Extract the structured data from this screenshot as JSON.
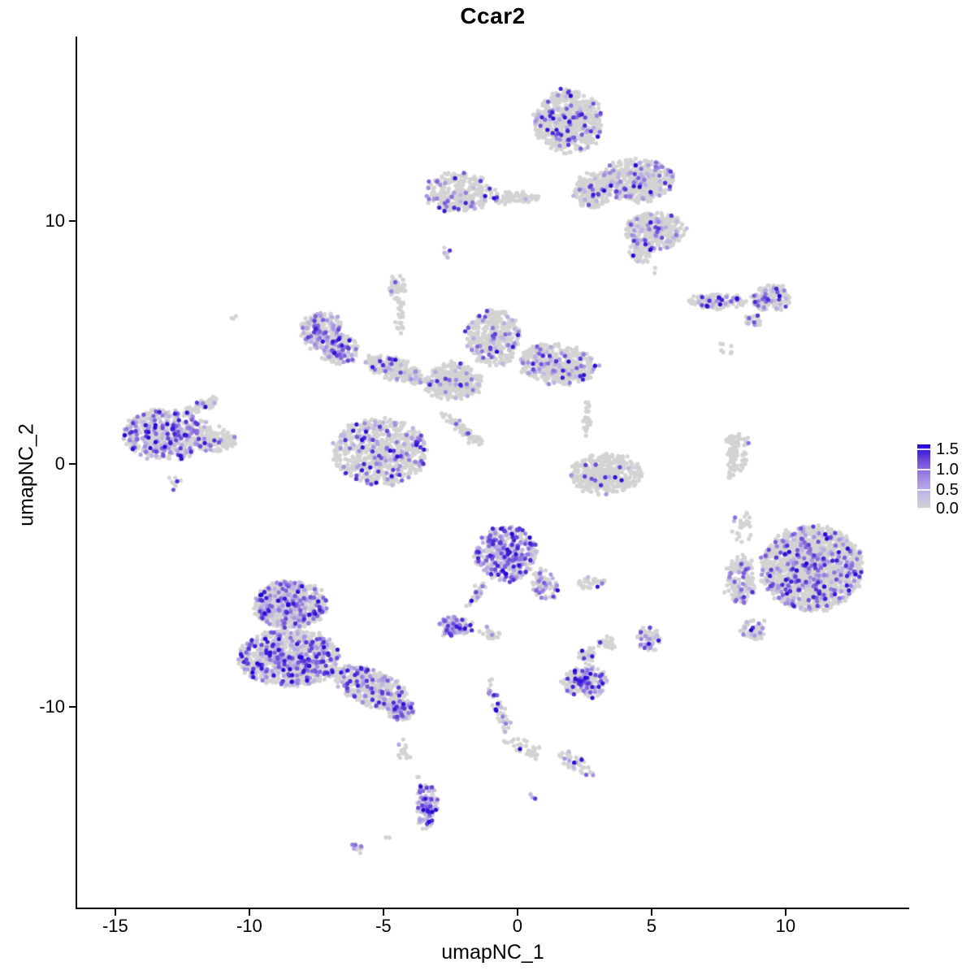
{
  "title": "Ccar2",
  "axes": {
    "x_label": "umapNC_1",
    "y_label": "umapNC_2"
  },
  "legend": {
    "labels": [
      "1.5",
      "1.0",
      "0.5",
      "0.0"
    ],
    "values": [
      1.5,
      1.0,
      0.5,
      0.0
    ]
  },
  "chart_data": {
    "type": "scatter",
    "subtype": "umap-feature-plot",
    "title": "Ccar2",
    "xlabel": "umapNC_1",
    "ylabel": "umapNC_2",
    "x_ticks": [
      -15,
      -10,
      -5,
      0,
      5,
      10
    ],
    "y_ticks": [
      -10,
      0,
      10
    ],
    "xlim": [
      -16.42,
      14.58
    ],
    "ylim": [
      -18.29,
      17.62
    ],
    "grid": false,
    "legend_position": "right",
    "point_radius_px": 2.6,
    "color_scale": {
      "vmin": 0.0,
      "vmax": 1.6,
      "low": "#d3d3d3",
      "high": "#2105d7",
      "stops": [
        [
          0,
          "#d3d3d3"
        ],
        [
          0.3,
          "#bcb1e3"
        ],
        [
          0.55,
          "#9379df"
        ],
        [
          0.8,
          "#5c38d8"
        ],
        [
          1,
          "#2105d7"
        ]
      ]
    },
    "clusters": [
      {
        "name": "top-main-lobe",
        "cx": 1.9,
        "cy": 14.1,
        "sx": 1.25,
        "sy": 1.3,
        "rot": 0,
        "n": 650,
        "expr_frac": 0.13
      },
      {
        "name": "top-right-mid",
        "cx": 4.5,
        "cy": 11.7,
        "sx": 1.35,
        "sy": 0.85,
        "rot": 0,
        "n": 520,
        "expr_frac": 0.13
      },
      {
        "name": "top-neck",
        "cx": 2.8,
        "cy": 11.3,
        "sx": 0.7,
        "sy": 0.75,
        "rot": 0,
        "n": 200,
        "expr_frac": 0.13
      },
      {
        "name": "top-bottomright-lobe",
        "cx": 5.1,
        "cy": 9.6,
        "sx": 1.15,
        "sy": 0.75,
        "rot": 0,
        "n": 330,
        "expr_frac": 0.16
      },
      {
        "name": "top-tail",
        "cx": 4.6,
        "cy": 8.8,
        "sx": 0.4,
        "sy": 0.55,
        "rot": 0,
        "n": 70,
        "expr_frac": 0.15
      },
      {
        "name": "top-left-bridge",
        "cx": -0.1,
        "cy": 11.0,
        "sx": 0.85,
        "sy": 0.22,
        "rot": 0,
        "n": 70,
        "expr_frac": 0.06
      },
      {
        "name": "top-left-satellite",
        "cx": -2.2,
        "cy": 11.2,
        "sx": 1.25,
        "sy": 0.8,
        "rot": 0,
        "n": 300,
        "expr_frac": 0.13
      },
      {
        "name": "tiny-pair",
        "cx": -2.7,
        "cy": 8.7,
        "sx": 0.28,
        "sy": 0.33,
        "rot": 0,
        "n": 6,
        "expr_frac": 0.25
      },
      {
        "name": "small-blob-upper",
        "cx": -4.5,
        "cy": 7.3,
        "sx": 0.3,
        "sy": 0.55,
        "rot": 0,
        "n": 45,
        "expr_frac": 0.1
      },
      {
        "name": "thin-strand-vert",
        "cx": -4.4,
        "cy": 6.1,
        "sx": 0.1,
        "sy": 0.7,
        "rot": 0,
        "n": 22,
        "expr_frac": 0
      },
      {
        "name": "x-head-a",
        "cx": -7.3,
        "cy": 5.5,
        "sx": 0.75,
        "sy": 0.75,
        "rot": 0,
        "n": 230,
        "expr_frac": 0.3
      },
      {
        "name": "x-head-b",
        "cx": -6.6,
        "cy": 4.7,
        "sx": 0.7,
        "sy": 0.6,
        "rot": 0,
        "n": 150,
        "expr_frac": 0.25
      },
      {
        "name": "x-arm-left",
        "cx": -4.6,
        "cy": 3.9,
        "sx": 1.15,
        "sy": 0.45,
        "rot": -20,
        "n": 240,
        "expr_frac": 0.12
      },
      {
        "name": "x-center",
        "cx": -2.4,
        "cy": 3.4,
        "sx": 1.05,
        "sy": 0.7,
        "rot": 0,
        "n": 360,
        "expr_frac": 0.1
      },
      {
        "name": "x-upper-right-lobe",
        "cx": -0.9,
        "cy": 5.2,
        "sx": 1.0,
        "sy": 1.15,
        "rot": 0,
        "n": 380,
        "expr_frac": 0.12
      },
      {
        "name": "x-right-arm",
        "cx": 1.5,
        "cy": 4.1,
        "sx": 1.45,
        "sy": 0.8,
        "rot": -8,
        "n": 460,
        "expr_frac": 0.15
      },
      {
        "name": "x-diag-strand",
        "cx": -2.0,
        "cy": 1.4,
        "sx": 1.05,
        "sy": 0.16,
        "rot": -42,
        "n": 70,
        "expr_frac": 0.08
      },
      {
        "name": "lower-mid-lobe",
        "cx": -5.1,
        "cy": 0.5,
        "sx": 1.75,
        "sy": 1.35,
        "rot": 0,
        "n": 700,
        "expr_frac": 0.18
      },
      {
        "name": "center-right-cluster",
        "cx": 3.3,
        "cy": -0.4,
        "sx": 1.35,
        "sy": 0.8,
        "rot": 0,
        "n": 390,
        "expr_frac": 0.04
      },
      {
        "name": "center-right-strand",
        "cx": 2.6,
        "cy": 1.9,
        "sx": 0.13,
        "sy": 0.85,
        "rot": 0,
        "n": 28,
        "expr_frac": 0.03
      },
      {
        "name": "right-strip-top",
        "cx": 8.2,
        "cy": 1.0,
        "sx": 0.5,
        "sy": 0.28,
        "rot": 0,
        "n": 35,
        "expr_frac": 0.15
      },
      {
        "name": "right-strip-vert",
        "cx": 8.0,
        "cy": 0.0,
        "sx": 0.16,
        "sy": 0.75,
        "rot": -6,
        "n": 45,
        "expr_frac": 0
      },
      {
        "name": "right-strip-vert2",
        "cx": 8.4,
        "cy": 0.1,
        "sx": 0.1,
        "sy": 0.38,
        "rot": 0,
        "n": 14,
        "expr_frac": 0
      },
      {
        "name": "right-lens-left",
        "cx": 7.4,
        "cy": 6.7,
        "sx": 1.05,
        "sy": 0.3,
        "rot": 0,
        "n": 110,
        "expr_frac": 0.18
      },
      {
        "name": "right-lens-right",
        "cx": 9.5,
        "cy": 6.8,
        "sx": 0.75,
        "sy": 0.55,
        "rot": 0,
        "n": 140,
        "expr_frac": 0.22
      },
      {
        "name": "right-lens-tail",
        "cx": 8.8,
        "cy": 5.9,
        "sx": 0.3,
        "sy": 0.28,
        "rot": 0,
        "n": 25,
        "expr_frac": 0.12
      },
      {
        "name": "tiny-triplet",
        "cx": 7.8,
        "cy": 4.7,
        "sx": 0.3,
        "sy": 0.3,
        "rot": 0,
        "n": 7,
        "expr_frac": 0
      },
      {
        "name": "big-right-main",
        "cx": 11.0,
        "cy": -4.3,
        "sx": 1.9,
        "sy": 1.75,
        "rot": 0,
        "n": 1500,
        "expr_frac": 0.2
      },
      {
        "name": "big-right-left-lobe",
        "cx": 8.3,
        "cy": -4.8,
        "sx": 0.55,
        "sy": 1.0,
        "rot": 0,
        "n": 160,
        "expr_frac": 0.18
      },
      {
        "name": "big-right-strays",
        "cx": 8.4,
        "cy": -2.6,
        "sx": 0.4,
        "sy": 0.75,
        "rot": 0,
        "n": 25,
        "expr_frac": 0.04
      },
      {
        "name": "big-right-bottom-tip",
        "cx": 8.8,
        "cy": -6.8,
        "sx": 0.45,
        "sy": 0.45,
        "rot": 0,
        "n": 60,
        "expr_frac": 0.2
      },
      {
        "name": "center-dense",
        "cx": -0.4,
        "cy": -3.7,
        "sx": 1.15,
        "sy": 1.1,
        "rot": 0,
        "n": 430,
        "expr_frac": 0.42
      },
      {
        "name": "center-dense-hook",
        "cx": 1.0,
        "cy": -5.0,
        "sx": 0.45,
        "sy": 0.65,
        "rot": 20,
        "n": 80,
        "expr_frac": 0.35
      },
      {
        "name": "center-tail",
        "cx": -1.5,
        "cy": -5.4,
        "sx": 0.14,
        "sy": 0.8,
        "rot": -27,
        "n": 30,
        "expr_frac": 0.5
      },
      {
        "name": "small-dense-blob",
        "cx": -2.3,
        "cy": -6.7,
        "sx": 0.68,
        "sy": 0.38,
        "rot": 0,
        "n": 95,
        "expr_frac": 0.55
      },
      {
        "name": "mid-grey-bits",
        "cx": 2.8,
        "cy": -4.9,
        "sx": 0.55,
        "sy": 0.25,
        "rot": 0,
        "n": 28,
        "expr_frac": 0.1
      },
      {
        "name": "mid-grey-bits2",
        "cx": -1.0,
        "cy": -7.0,
        "sx": 0.4,
        "sy": 0.22,
        "rot": 0,
        "n": 20,
        "expr_frac": 0.1
      },
      {
        "name": "bottomleft-top",
        "cx": -8.5,
        "cy": -5.8,
        "sx": 1.35,
        "sy": 0.95,
        "rot": 0,
        "n": 700,
        "expr_frac": 0.28
      },
      {
        "name": "bottomleft-main",
        "cx": -8.5,
        "cy": -8.0,
        "sx": 1.9,
        "sy": 1.15,
        "rot": 0,
        "n": 1000,
        "expr_frac": 0.28
      },
      {
        "name": "bottomleft-arm",
        "cx": -5.5,
        "cy": -9.2,
        "sx": 1.5,
        "sy": 0.7,
        "rot": -25,
        "n": 450,
        "expr_frac": 0.22
      },
      {
        "name": "bottomleft-arm-tip",
        "cx": -4.3,
        "cy": -10.2,
        "sx": 0.5,
        "sy": 0.42,
        "rot": 0,
        "n": 120,
        "expr_frac": 0.35
      },
      {
        "name": "bottomleft-chain",
        "cx": -4.2,
        "cy": -11.8,
        "sx": 0.22,
        "sy": 0.5,
        "rot": 0,
        "n": 16,
        "expr_frac": 0.1
      },
      {
        "name": "bottom-banana",
        "cx": -3.4,
        "cy": -14.1,
        "sx": 0.38,
        "sy": 0.95,
        "rot": 0,
        "n": 110,
        "expr_frac": 0.6
      },
      {
        "name": "bottom-tiny",
        "cx": -6.0,
        "cy": -15.8,
        "sx": 0.25,
        "sy": 0.13,
        "rot": -20,
        "n": 12,
        "expr_frac": 0.5
      },
      {
        "name": "small-south-cluster",
        "cx": 2.5,
        "cy": -9.0,
        "sx": 0.85,
        "sy": 0.65,
        "rot": 0,
        "n": 190,
        "expr_frac": 0.4
      },
      {
        "name": "small-south-top",
        "cx": 2.6,
        "cy": -7.9,
        "sx": 0.3,
        "sy": 0.35,
        "rot": 0,
        "n": 40,
        "expr_frac": 0.25
      },
      {
        "name": "small-east-blob",
        "cx": 4.9,
        "cy": -7.2,
        "sx": 0.42,
        "sy": 0.5,
        "rot": 0,
        "n": 60,
        "expr_frac": 0.35
      },
      {
        "name": "small-east-grey",
        "cx": 3.3,
        "cy": -7.4,
        "sx": 0.3,
        "sy": 0.28,
        "rot": 0,
        "n": 30,
        "expr_frac": 0.05
      },
      {
        "name": "strand-seg1",
        "cx": -0.7,
        "cy": -10.0,
        "sx": 0.18,
        "sy": 1.25,
        "rot": 18,
        "n": 45,
        "expr_frac": 0.25
      },
      {
        "name": "strand-seg2",
        "cx": 0.3,
        "cy": -11.7,
        "sx": 0.8,
        "sy": 0.26,
        "rot": -25,
        "n": 35,
        "expr_frac": 0.2
      },
      {
        "name": "strand-seg3",
        "cx": 2.2,
        "cy": -12.4,
        "sx": 0.78,
        "sy": 0.3,
        "rot": -34,
        "n": 45,
        "expr_frac": 0.25
      },
      {
        "name": "strand-dot",
        "cx": 0.6,
        "cy": -13.7,
        "sx": 0.1,
        "sy": 0.1,
        "rot": 0,
        "n": 3,
        "expr_frac": 0.7
      },
      {
        "name": "left-fish-body",
        "cx": -13.1,
        "cy": 1.2,
        "sx": 1.6,
        "sy": 1.05,
        "rot": 0,
        "n": 550,
        "expr_frac": 0.32
      },
      {
        "name": "left-fish-nose",
        "cx": -11.3,
        "cy": 1.0,
        "sx": 0.75,
        "sy": 0.5,
        "rot": 0,
        "n": 130,
        "expr_frac": 0.12
      },
      {
        "name": "left-fish-fin",
        "cx": -11.8,
        "cy": 2.4,
        "sx": 0.75,
        "sy": 0.2,
        "rot": 25,
        "n": 60,
        "expr_frac": 0.1
      },
      {
        "name": "left-fish-drip",
        "cx": -12.8,
        "cy": -0.8,
        "sx": 0.3,
        "sy": 0.35,
        "rot": 0,
        "n": 9,
        "expr_frac": 0.3
      },
      {
        "name": "stray-a",
        "cx": -10.6,
        "cy": 6.0,
        "sx": 0.12,
        "sy": 0.12,
        "rot": 0,
        "n": 3,
        "expr_frac": 0
      },
      {
        "name": "stray-b",
        "cx": -3.7,
        "cy": -12.8,
        "sx": 0.08,
        "sy": 0.08,
        "rot": 0,
        "n": 2,
        "expr_frac": 0
      },
      {
        "name": "stray-c",
        "cx": -4.8,
        "cy": -15.4,
        "sx": 0.08,
        "sy": 0.08,
        "rot": 0,
        "n": 2,
        "expr_frac": 0
      },
      {
        "name": "stray-d",
        "cx": 5.1,
        "cy": 8.0,
        "sx": 0.1,
        "sy": 0.1,
        "rot": 0,
        "n": 2,
        "expr_frac": 0
      }
    ]
  }
}
